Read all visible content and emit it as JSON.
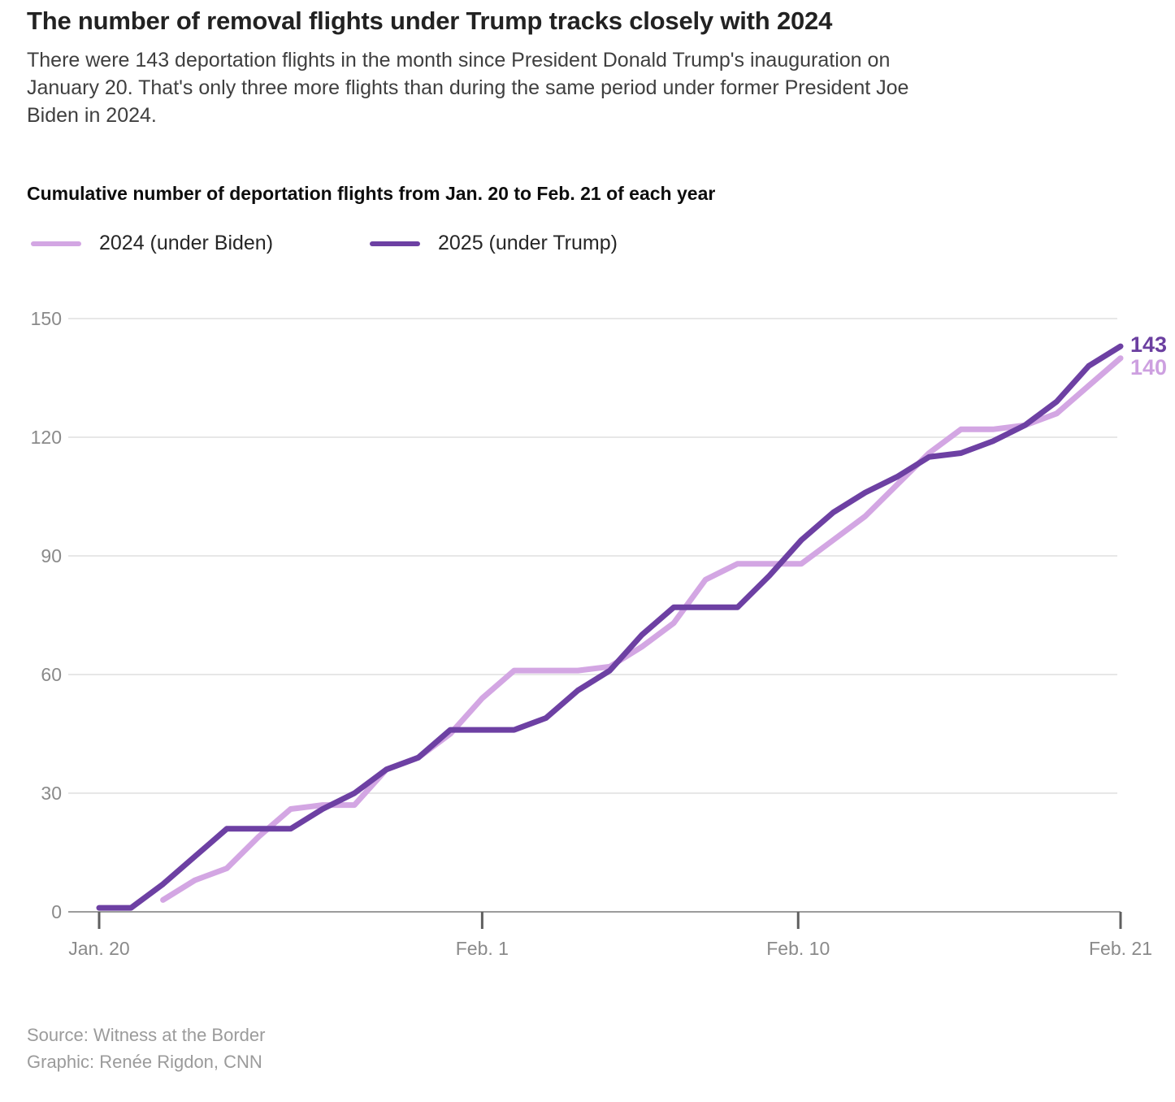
{
  "header": {
    "title": "The number of removal flights under Trump tracks closely with 2024",
    "subtitle_line1": "There were 143 deportation flights in the month since President Donald Trump's inauguration on",
    "subtitle_line2": "January 20. That's only three more flights than during the same period under former President Joe",
    "subtitle_line3": "Biden in 2024."
  },
  "chart_data": {
    "type": "line",
    "title": "Cumulative number of deportation flights from Jan. 20 to Feb. 21 of each year",
    "x": [
      "Jan. 20",
      "Jan. 21",
      "Jan. 22",
      "Jan. 23",
      "Jan. 24",
      "Jan. 25",
      "Jan. 26",
      "Jan. 27",
      "Jan. 28",
      "Jan. 29",
      "Jan. 30",
      "Jan. 31",
      "Feb. 1",
      "Feb. 2",
      "Feb. 3",
      "Feb. 4",
      "Feb. 5",
      "Feb. 6",
      "Feb. 7",
      "Feb. 8",
      "Feb. 9",
      "Feb. 10",
      "Feb. 11",
      "Feb. 12",
      "Feb. 13",
      "Feb. 14",
      "Feb. 15",
      "Feb. 16",
      "Feb. 17",
      "Feb. 18",
      "Feb. 19",
      "Feb. 20",
      "Feb. 21"
    ],
    "series": [
      {
        "name": "2024 (under Biden)",
        "color": "#d3a6e3",
        "label_color": "#cda0e0",
        "end_label": "140",
        "values": [
          null,
          null,
          3,
          8,
          11,
          19,
          26,
          27,
          27,
          36,
          39,
          45,
          54,
          61,
          61,
          61,
          62,
          67,
          73,
          84,
          88,
          88,
          88,
          94,
          100,
          108,
          116,
          122,
          122,
          123,
          126,
          133,
          140
        ]
      },
      {
        "name": "2025 (under Trump)",
        "color": "#6d40a3",
        "label_color": "#6b3fa0",
        "end_label": "143",
        "values": [
          1,
          1,
          7,
          14,
          21,
          21,
          21,
          26,
          30,
          36,
          39,
          46,
          46,
          46,
          49,
          56,
          61,
          70,
          77,
          77,
          77,
          85,
          94,
          101,
          106,
          110,
          115,
          116,
          119,
          123,
          129,
          138,
          143
        ]
      }
    ],
    "ylim": [
      0,
      150
    ],
    "yticks": [
      0,
      30,
      60,
      90,
      120,
      150
    ],
    "xticks": [
      {
        "label": "Jan. 20",
        "day": 0
      },
      {
        "label": "Feb. 1",
        "day": 12
      },
      {
        "label": "Feb. 10",
        "day": 21.9
      },
      {
        "label": "Feb. 21",
        "day": 32
      }
    ],
    "grid": "horizontal-only",
    "legend_position": "top-left"
  },
  "source": {
    "line1": "Source: Witness at the Border",
    "line2": "Graphic: Renée Rigdon, CNN"
  }
}
